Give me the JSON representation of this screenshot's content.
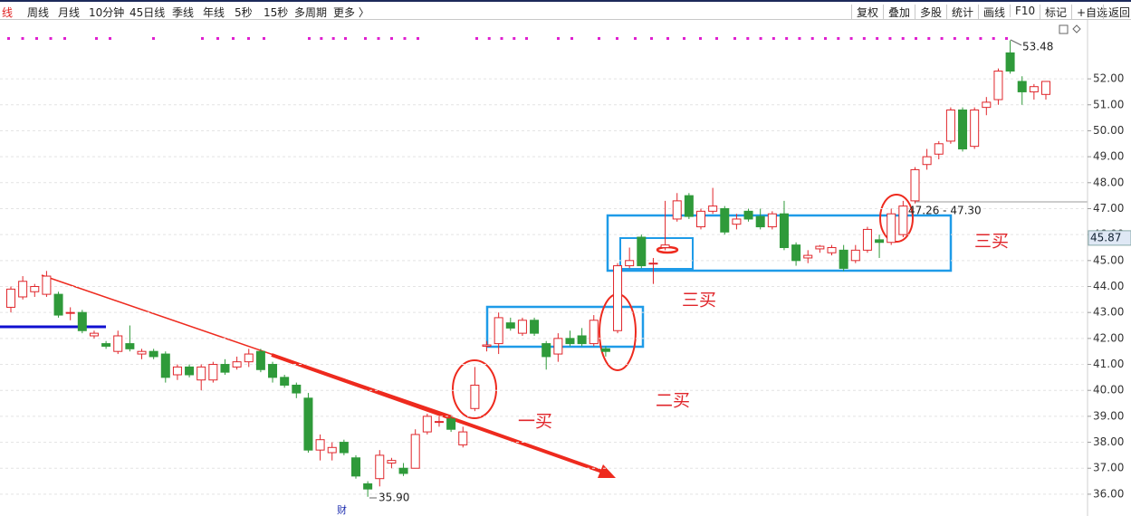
{
  "toolbar": {
    "left": [
      "日线",
      "周线",
      "月线",
      "10分钟",
      "45日线",
      "季线",
      "年线",
      "5秒",
      "15秒",
      "多周期",
      "更多 〉"
    ],
    "right": [
      "复权",
      "叠加",
      "多股",
      "统计",
      "画线",
      "F10",
      "标记",
      "+自选",
      "返回"
    ]
  },
  "chart_data": {
    "type": "candlestick",
    "open": [
      43.2,
      43.6,
      43.8,
      43.7,
      43.7,
      43.0,
      43.0,
      42.1,
      41.8,
      41.5,
      41.8,
      41.4,
      41.5,
      41.4,
      40.6,
      40.9,
      40.4,
      40.4,
      41.0,
      40.9,
      41.1,
      41.5,
      41.0,
      40.5,
      40.2,
      39.7,
      37.7,
      37.6,
      38.0,
      37.4,
      36.4,
      36.6,
      37.2,
      37.0,
      37.0,
      38.4,
      38.8,
      38.9,
      37.9,
      39.3,
      41.7,
      41.8,
      42.6,
      42.2,
      42.7,
      41.8,
      41.4,
      42.0,
      42.1,
      41.8,
      41.6,
      42.3,
      44.8,
      45.9,
      44.9,
      45.5,
      46.6,
      47.5,
      46.3,
      46.9,
      47.0,
      46.4,
      46.9,
      46.7,
      46.3,
      46.8,
      45.6,
      45.1,
      45.45,
      45.3,
      45.4,
      45.0,
      45.4,
      45.8,
      45.7,
      46.0,
      47.3,
      48.7,
      49.1,
      49.6,
      50.8,
      49.4,
      50.9,
      51.2,
      53.0,
      51.9,
      51.5,
      51.4
    ],
    "high": [
      44.0,
      44.4,
      44.1,
      44.6,
      43.8,
      43.2,
      43.1,
      42.3,
      41.9,
      42.3,
      42.5,
      41.6,
      41.6,
      41.5,
      41.0,
      41.0,
      41.0,
      41.1,
      41.2,
      41.3,
      41.6,
      41.6,
      41.1,
      40.6,
      40.3,
      39.9,
      38.3,
      38.0,
      38.1,
      37.5,
      36.5,
      37.7,
      37.4,
      37.2,
      38.5,
      39.1,
      39.0,
      39.0,
      38.6,
      40.9,
      41.9,
      43.0,
      42.8,
      42.8,
      42.8,
      41.9,
      42.2,
      42.3,
      42.4,
      42.9,
      41.7,
      44.9,
      45.5,
      46.0,
      45.1,
      47.3,
      47.6,
      47.6,
      47.0,
      47.8,
      47.1,
      46.8,
      47.0,
      47.0,
      46.9,
      47.3,
      45.7,
      45.4,
      45.6,
      45.6,
      45.6,
      45.6,
      46.3,
      46.0,
      47.0,
      47.3,
      48.6,
      49.3,
      49.6,
      50.9,
      50.9,
      50.9,
      51.3,
      52.4,
      53.48,
      52.1,
      51.8,
      51.9
    ],
    "low": [
      43.0,
      43.5,
      43.6,
      43.6,
      42.8,
      42.7,
      42.2,
      42.0,
      41.6,
      41.4,
      41.5,
      41.2,
      41.2,
      40.3,
      40.4,
      40.5,
      40.0,
      40.3,
      40.6,
      40.8,
      40.9,
      40.7,
      40.3,
      40.1,
      39.7,
      37.6,
      37.3,
      37.3,
      37.5,
      36.6,
      35.9,
      36.3,
      37.0,
      36.7,
      37.0,
      38.3,
      38.6,
      38.4,
      37.8,
      39.2,
      41.5,
      41.4,
      42.3,
      42.1,
      42.1,
      40.8,
      41.1,
      41.7,
      41.7,
      41.7,
      41.3,
      42.2,
      44.7,
      44.7,
      44.1,
      45.4,
      46.5,
      46.6,
      46.2,
      46.8,
      46.0,
      46.2,
      46.5,
      46.2,
      46.2,
      45.4,
      44.8,
      44.9,
      45.3,
      45.2,
      44.6,
      44.9,
      45.3,
      45.1,
      45.6,
      45.9,
      47.2,
      48.5,
      48.9,
      49.5,
      49.2,
      49.3,
      50.6,
      51.0,
      52.2,
      51.0,
      51.2,
      51.2
    ],
    "close": [
      43.9,
      44.2,
      44.0,
      44.4,
      42.9,
      43.0,
      42.3,
      42.2,
      41.7,
      42.1,
      41.6,
      41.5,
      41.3,
      40.5,
      40.9,
      40.6,
      40.9,
      41.0,
      40.7,
      41.1,
      41.4,
      40.8,
      40.5,
      40.2,
      39.9,
      37.7,
      38.1,
      37.8,
      37.6,
      36.7,
      36.2,
      37.5,
      37.3,
      36.8,
      38.3,
      39.0,
      38.8,
      38.5,
      38.4,
      40.2,
      41.75,
      42.8,
      42.4,
      42.7,
      42.2,
      41.3,
      42.0,
      41.8,
      41.8,
      42.7,
      41.5,
      44.8,
      45.0,
      44.8,
      44.9,
      45.6,
      47.3,
      46.7,
      46.9,
      47.1,
      46.1,
      46.6,
      46.6,
      46.3,
      46.8,
      45.5,
      45.0,
      45.2,
      45.55,
      45.5,
      44.7,
      45.4,
      46.2,
      45.7,
      46.8,
      47.1,
      48.5,
      49.0,
      49.5,
      50.8,
      49.3,
      50.8,
      51.1,
      52.3,
      52.3,
      51.5,
      51.7,
      51.9
    ],
    "up_color": "#e0262b",
    "down_color": "#2f9a3a",
    "ylim": [
      35.16,
      54.27
    ],
    "yticks": [
      {
        "value": 36,
        "label": "36.00"
      },
      {
        "value": 37,
        "label": "37.00"
      },
      {
        "value": 38,
        "label": "38.00"
      },
      {
        "value": 39,
        "label": "39.00"
      },
      {
        "value": 40,
        "label": "40.00"
      },
      {
        "value": 41,
        "label": "41.00"
      },
      {
        "value": 42,
        "label": "42.00"
      },
      {
        "value": 43,
        "label": "43.00"
      },
      {
        "value": 44,
        "label": "44.00"
      },
      {
        "value": 45,
        "label": "45.00"
      },
      {
        "value": 46,
        "label": "46.00"
      },
      {
        "value": 47,
        "label": "47.00"
      },
      {
        "value": 48,
        "label": "48.00"
      },
      {
        "value": 49,
        "label": "49.00"
      },
      {
        "value": 50,
        "label": "50.00"
      },
      {
        "value": 51,
        "label": "51.00"
      },
      {
        "value": 52,
        "label": "52.00"
      }
    ],
    "grid": true,
    "current_price": {
      "value": 45.87,
      "label": "45.87"
    },
    "annotations": [
      "53.48",
      "35.90",
      "47.26 - 47.30",
      "一买",
      "二买",
      "三买",
      "三买",
      "财"
    ]
  }
}
